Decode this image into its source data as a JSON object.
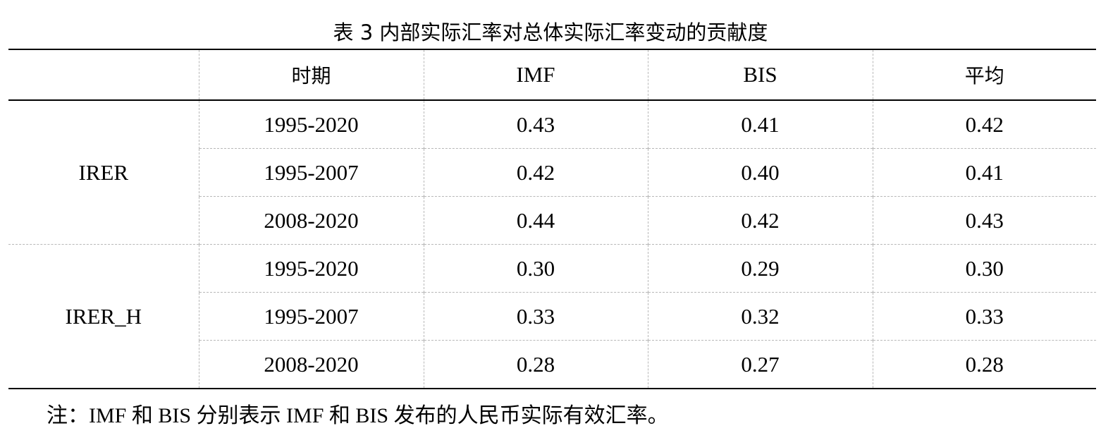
{
  "caption": "表 3  内部实际汇率对总体实际汇率变动的贡献度",
  "table": {
    "headers": [
      "",
      "时期",
      "IMF",
      "BIS",
      "平均"
    ],
    "groups": [
      {
        "label": "IRER",
        "rows": [
          {
            "period": "1995-2020",
            "imf": "0.43",
            "bis": "0.41",
            "avg": "0.42"
          },
          {
            "period": "1995-2007",
            "imf": "0.42",
            "bis": "0.40",
            "avg": "0.41"
          },
          {
            "period": "2008-2020",
            "imf": "0.44",
            "bis": "0.42",
            "avg": "0.43"
          }
        ]
      },
      {
        "label": "IRER_H",
        "rows": [
          {
            "period": "1995-2020",
            "imf": "0.30",
            "bis": "0.29",
            "avg": "0.30"
          },
          {
            "period": "1995-2007",
            "imf": "0.33",
            "bis": "0.32",
            "avg": "0.33"
          },
          {
            "period": "2008-2020",
            "imf": "0.28",
            "bis": "0.27",
            "avg": "0.28"
          }
        ]
      }
    ]
  },
  "note": "注：IMF 和 BIS 分别表示 IMF 和 BIS 发布的人民币实际有效汇率。"
}
